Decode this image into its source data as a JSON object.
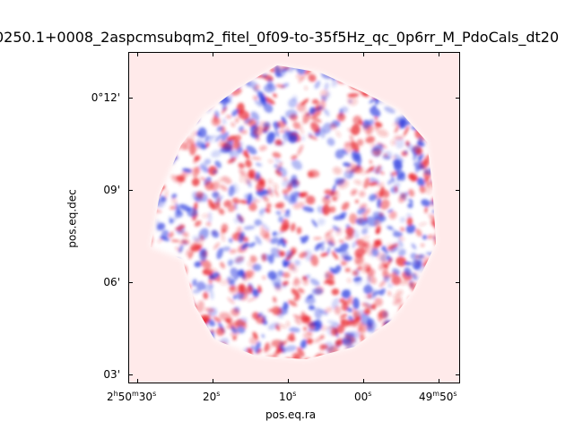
{
  "figure": {
    "title": "0250.1+0008_2aspcmsubqm2_fitel_0f09-to-35f5Hz_qc_0p6rr_M_PdoCals_dt20"
  },
  "axes": {
    "xlabel": "pos.eq.ra",
    "ylabel": "pos.eq.dec",
    "x_ticks": [
      {
        "h": "2",
        "hu": "h",
        "m": "50",
        "mu": "m",
        "s": "30",
        "su": "s"
      },
      {
        "h": "",
        "hu": "",
        "m": "",
        "mu": "",
        "s": "20",
        "su": "s"
      },
      {
        "h": "",
        "hu": "",
        "m": "",
        "mu": "",
        "s": "10",
        "su": "s"
      },
      {
        "h": "",
        "hu": "",
        "m": "",
        "mu": "",
        "s": "00",
        "su": "s"
      },
      {
        "h": "",
        "hu": "",
        "m": "49",
        "mu": "m",
        "s": "50",
        "su": "s"
      }
    ],
    "y_ticks": [
      "0°12'",
      "09'",
      "06'",
      "03'"
    ]
  },
  "colors": {
    "background": "#ffffff",
    "map_background": "#ffeaea",
    "positive": "#e8202a",
    "negative": "#2f3fe0"
  },
  "image": {
    "description_icon": "sky-map-image",
    "colormap": "bwr"
  }
}
